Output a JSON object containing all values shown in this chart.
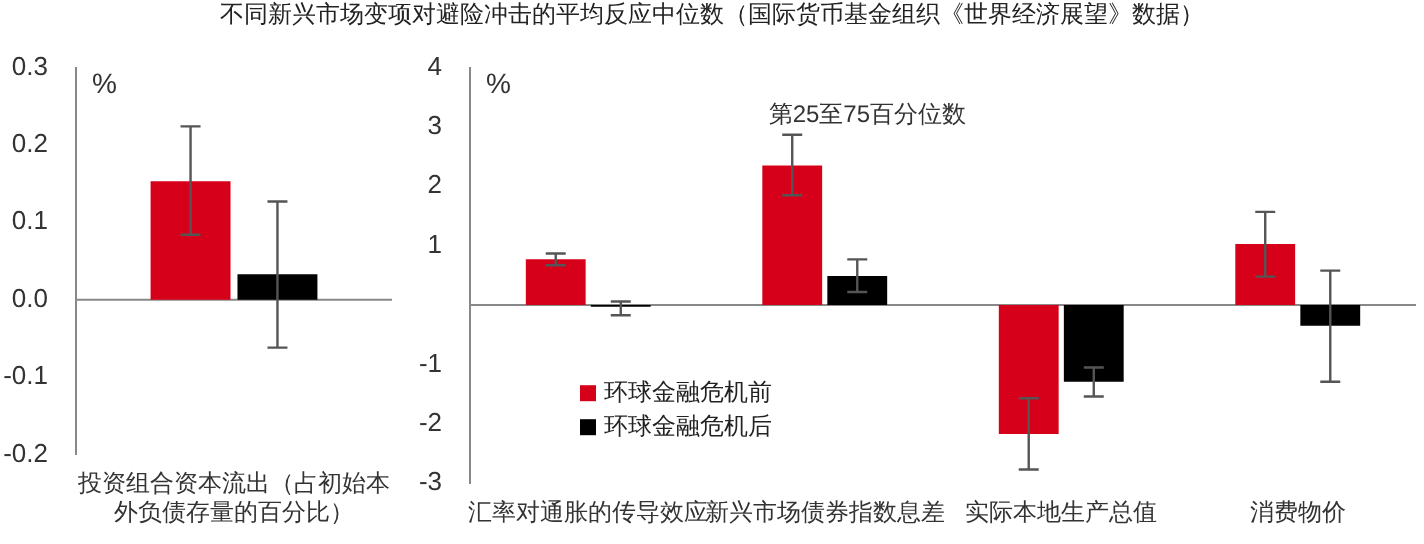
{
  "chart_data": [
    {
      "type": "bar",
      "title": "不同新兴市场变项对避险冲击的平均反应中位数（国际货币基金组织《世界经济展望》数据）",
      "ylabel": "%",
      "categories": [
        "投资组合资本流出（占初始本外负债存量的百分比）"
      ],
      "series": [
        {
          "color": "#d7001a",
          "values": [
            0.153
          ],
          "errors": [
            [
              0.084,
              0.224
            ]
          ]
        },
        {
          "color": "#000000",
          "values": [
            0.033
          ],
          "errors": [
            [
              -0.062,
              0.127
            ]
          ]
        }
      ],
      "ylim": [
        -0.2,
        0.3
      ],
      "yticks": [
        -0.2,
        -0.1,
        {
          "value": 0,
          "label": "0.0"
        },
        0.1,
        0.2,
        0.3
      ],
      "grid": false,
      "legend": false,
      "ref_lines": [
        {
          "axis": "y",
          "value": 0,
          "color": "#888888"
        }
      ]
    },
    {
      "type": "bar",
      "ylabel": "%",
      "annotations": [
        "第25至75百分位数"
      ],
      "categories": [
        "汇率对通胀的传导效应",
        "新兴市场债券指数息差",
        "实际本地生产总值",
        "消费物价"
      ],
      "series": [
        {
          "name": "环球金融危机前",
          "color": "#d7001a",
          "values": [
            0.77,
            2.35,
            -2.17,
            1.03
          ],
          "errors": [
            [
              0.67,
              0.87
            ],
            [
              1.85,
              2.87
            ],
            [
              -2.77,
              -1.57
            ],
            [
              0.48,
              1.57
            ]
          ]
        },
        {
          "name": "环球金融危机后",
          "color": "#000000",
          "values": [
            -0.03,
            0.49,
            -1.29,
            -0.35
          ],
          "errors": [
            [
              -0.17,
              0.06
            ],
            [
              0.22,
              0.77
            ],
            [
              -1.54,
              -1.05
            ],
            [
              -1.29,
              0.58
            ]
          ]
        }
      ],
      "ylim": [
        -3,
        4
      ],
      "yticks": [
        -3,
        -2,
        -1,
        1,
        2,
        3,
        4
      ],
      "grid": false,
      "legend": "bottom left",
      "ref_lines": [
        {
          "axis": "y",
          "value": 0,
          "color": "#888888"
        }
      ]
    }
  ]
}
